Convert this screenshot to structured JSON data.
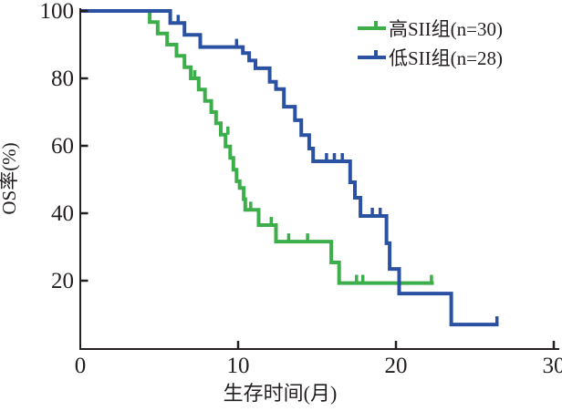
{
  "figure": {
    "background": "#ffffff"
  },
  "chart_data": {
    "type": "line",
    "subtype": "kaplan-meier-step-survival",
    "title": "",
    "xlabel": "生存时间(月)",
    "ylabel": "OS率(%)",
    "xlim": [
      0,
      30
    ],
    "ylim": [
      0,
      100
    ],
    "x_ticks": [
      0,
      10,
      20,
      30
    ],
    "y_ticks": [
      20,
      40,
      60,
      80,
      100
    ],
    "grid": false,
    "legend_position": "top-right",
    "axis_color": "#231f20",
    "series": [
      {
        "id": "high-sii",
        "name": "高SII组(n=30)",
        "n": 30,
        "color": "#3cae4a",
        "steps": [
          [
            0,
            100
          ],
          [
            4.4,
            96.7
          ],
          [
            4.9,
            93.3
          ],
          [
            5.5,
            90
          ],
          [
            6.1,
            86.7
          ],
          [
            6.6,
            83.3
          ],
          [
            7.0,
            80
          ],
          [
            7.5,
            76.7
          ],
          [
            7.9,
            73.3
          ],
          [
            8.3,
            70
          ],
          [
            8.6,
            66.7
          ],
          [
            8.9,
            63.3
          ],
          [
            9.2,
            59.8
          ],
          [
            9.5,
            56.4
          ],
          [
            9.7,
            52.9
          ],
          [
            9.9,
            49.5
          ],
          [
            10.1,
            47.5
          ],
          [
            10.35,
            44.2
          ],
          [
            10.45,
            41
          ],
          [
            11.3,
            36.5
          ],
          [
            12.4,
            31.6
          ],
          [
            15.9,
            25.4
          ],
          [
            16.4,
            19.3
          ]
        ],
        "end_time": 22.4,
        "censor_marks": [
          [
            7.25,
            80
          ],
          [
            9.35,
            63.3
          ],
          [
            10.8,
            41
          ],
          [
            12.1,
            36.5
          ],
          [
            13.2,
            31.6
          ],
          [
            14.4,
            31.6
          ],
          [
            17.5,
            19.3
          ],
          [
            17.9,
            19.3
          ],
          [
            22.25,
            19.3
          ]
        ]
      },
      {
        "id": "low-sii",
        "name": "低SII组(n=28)",
        "n": 28,
        "color": "#2b51a3",
        "steps": [
          [
            0,
            100
          ],
          [
            5.7,
            96.4
          ],
          [
            6.6,
            92.9
          ],
          [
            7.6,
            89.3
          ],
          [
            10.3,
            87.5
          ],
          [
            10.7,
            85.3
          ],
          [
            11.1,
            83
          ],
          [
            12.0,
            79
          ],
          [
            12.4,
            76.8
          ],
          [
            12.9,
            71.6
          ],
          [
            13.6,
            67.6
          ],
          [
            14.0,
            63.2
          ],
          [
            14.5,
            59.2
          ],
          [
            14.75,
            55.4
          ],
          [
            17.1,
            49.2
          ],
          [
            17.4,
            44.6
          ],
          [
            17.75,
            39.2
          ],
          [
            19.4,
            31.1
          ],
          [
            19.6,
            23.5
          ],
          [
            20.2,
            16.2
          ],
          [
            23.5,
            7
          ]
        ],
        "end_time": 26.5,
        "censor_marks": [
          [
            6.2,
            96.4
          ],
          [
            9.9,
            89.3
          ],
          [
            15.6,
            55.4
          ],
          [
            16.1,
            55.4
          ],
          [
            16.6,
            55.4
          ],
          [
            18.5,
            39.2
          ],
          [
            19.0,
            39.2
          ],
          [
            26.4,
            7
          ]
        ]
      }
    ]
  }
}
